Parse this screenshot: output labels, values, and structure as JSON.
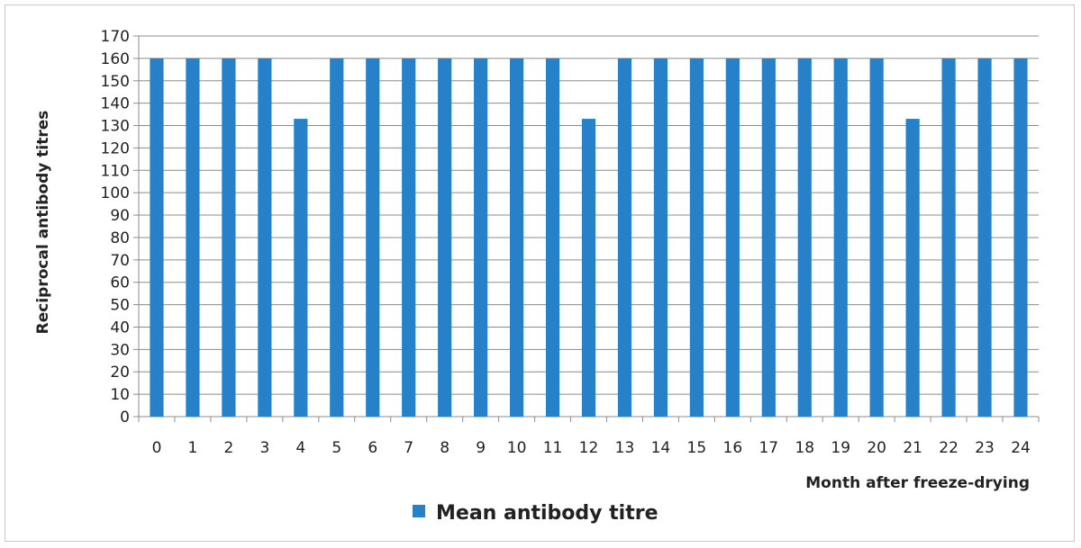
{
  "chart_data": {
    "type": "bar",
    "categories": [
      "0",
      "1",
      "2",
      "3",
      "4",
      "5",
      "6",
      "7",
      "8",
      "9",
      "10",
      "11",
      "12",
      "13",
      "14",
      "15",
      "16",
      "17",
      "18",
      "19",
      "20",
      "21",
      "22",
      "23",
      "24"
    ],
    "series": [
      {
        "name": "Mean antibody titre",
        "color": "#2681c8",
        "values": [
          160,
          160,
          160,
          160,
          133,
          160,
          160,
          160,
          160,
          160,
          160,
          160,
          133,
          160,
          160,
          160,
          160,
          160,
          160,
          160,
          160,
          133,
          160,
          160,
          160
        ]
      }
    ],
    "title": "",
    "xlabel": "Month after freeze-drying",
    "ylabel": "Reciprocal antibody titres",
    "ylim": [
      0,
      170
    ],
    "yticks": [
      0,
      10,
      20,
      30,
      40,
      50,
      60,
      70,
      80,
      90,
      100,
      110,
      120,
      130,
      140,
      150,
      160,
      170
    ],
    "grid": true,
    "legend_position": "bottom"
  }
}
